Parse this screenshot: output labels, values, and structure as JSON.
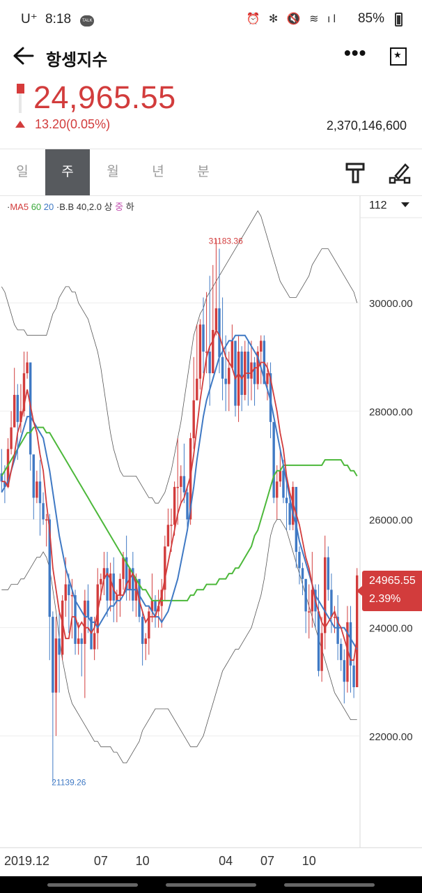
{
  "status_bar": {
    "carrier": "U⁺",
    "time": "8:18",
    "talk_badge": "TALK",
    "icons": "⏰ ✻ 🔇 ≋ ıl",
    "battery": "85%"
  },
  "header": {
    "title": "항셍지수",
    "back_icon": "arrow-left-icon",
    "more_icon": "more-dots-icon",
    "bookmark_icon": "bookmark-star-icon"
  },
  "quote": {
    "price": "24,965.55",
    "change": "13.20(0.05%)",
    "direction": "up",
    "volume": "2,370,146,600",
    "color_up": "#d23c3c"
  },
  "tabs": [
    {
      "label": "일",
      "active": false
    },
    {
      "label": "주",
      "active": true
    },
    {
      "label": "월",
      "active": false
    },
    {
      "label": "년",
      "active": false
    },
    {
      "label": "분",
      "active": false
    }
  ],
  "legend": {
    "ma5": "MA5",
    "ma60": "60",
    "ma20": "20",
    "bb": "B.B 40,2.0 상",
    "mid": "중",
    "low": "하"
  },
  "candle_count": "112",
  "price_tag": {
    "value": "24965.55",
    "percent": "2.39%"
  },
  "chart_data": {
    "type": "candlestick",
    "ylim": [
      20000,
      31600
    ],
    "y_ticks": [
      22000,
      24000,
      26000,
      28000,
      30000
    ],
    "y_tick_labels": [
      "22000.00",
      "24000.00",
      "26000.00",
      "28000.00",
      "30000.00"
    ],
    "x_tick_labels": [
      {
        "label": "2019.12",
        "index": 2
      },
      {
        "label": "07",
        "index": 31
      },
      {
        "label": "10",
        "index": 44
      },
      {
        "label": "04",
        "index": 70
      },
      {
        "label": "07",
        "index": 83
      },
      {
        "label": "10",
        "index": 96
      }
    ],
    "annotations": [
      {
        "text": "31183.36",
        "index": 64,
        "value": 31183.36,
        "kind": "high"
      },
      {
        "text": "21139.26",
        "index": 15,
        "value": 21139.26,
        "kind": "low"
      }
    ],
    "grid": true,
    "colors": {
      "up": "#d23c3c",
      "down": "#3f79c4",
      "ma5": "#d23c3c",
      "ma20": "#3f79c4",
      "ma60": "#4cb83a",
      "bband": "#555555"
    },
    "close": [
      26700,
      26600,
      27300,
      27700,
      28300,
      27800,
      28000,
      28700,
      28900,
      27200,
      26400,
      26700,
      26300,
      26000,
      26000,
      24200,
      22800,
      23800,
      23500,
      24500,
      24800,
      24600,
      24600,
      23700,
      23800,
      23700,
      24500,
      24200,
      23600,
      23900,
      24800,
      24900,
      25100,
      24500,
      25000,
      24500,
      24600,
      24900,
      25300,
      24700,
      25100,
      24500,
      24900,
      24200,
      23700,
      23800,
      24300,
      24500,
      24300,
      24400,
      24700,
      25500,
      25900,
      25900,
      26600,
      26600,
      26800,
      26500,
      26000,
      27500,
      28200,
      28600,
      29600,
      29100,
      29100,
      28700,
      29500,
      29900,
      29000,
      28600,
      28500,
      28800,
      29300,
      28100,
      29100,
      28300,
      29100,
      28600,
      28900,
      28500,
      29100,
      29300,
      28500,
      28700,
      27800,
      26400,
      26700,
      26900,
      26400,
      26300,
      25900,
      26600,
      25400,
      25100,
      24900,
      24300,
      24300,
      24700,
      24300,
      23200,
      23900,
      25300,
      24700,
      24200,
      24200,
      23700,
      23400,
      23000,
      24100,
      23300,
      22900,
      24965.55
    ],
    "high": [
      27300,
      27000,
      27500,
      28000,
      28800,
      28500,
      28500,
      29100,
      29100,
      28800,
      27200,
      26900,
      27100,
      26500,
      26100,
      26100,
      24300,
      24200,
      24300,
      24600,
      25300,
      25000,
      24900,
      24700,
      24100,
      23900,
      24700,
      24800,
      24200,
      24200,
      25100,
      25000,
      25400,
      25400,
      25200,
      25300,
      24700,
      25000,
      25400,
      25700,
      25100,
      25400,
      25000,
      24800,
      24300,
      23900,
      24400,
      25000,
      24600,
      24700,
      24900,
      25700,
      26200,
      26200,
      26700,
      27500,
      27000,
      27400,
      26600,
      27600,
      29000,
      29600,
      29700,
      30100,
      30200,
      30500,
      30700,
      31183,
      31000,
      30100,
      29400,
      29100,
      29600,
      29300,
      29400,
      29200,
      29300,
      29300,
      29300,
      29000,
      29200,
      29400,
      29400,
      28900,
      28900,
      27700,
      27000,
      27300,
      27100,
      26800,
      26400,
      26700,
      26400,
      25500,
      25200,
      24900,
      24800,
      25400,
      24800,
      24800,
      24200,
      25700,
      25500,
      25000,
      24400,
      24600,
      23800,
      23600,
      24400,
      24400,
      23400,
      25100
    ],
    "low": [
      26500,
      26300,
      26700,
      27200,
      28000,
      27100,
      27600,
      27900,
      28600,
      26900,
      26000,
      26300,
      25700,
      25900,
      25500,
      23400,
      21139,
      22000,
      22800,
      23400,
      24200,
      23900,
      23800,
      23500,
      23500,
      23100,
      22700,
      23900,
      23600,
      23400,
      23600,
      24500,
      24600,
      24200,
      24300,
      24100,
      24100,
      24200,
      24700,
      24500,
      24500,
      24300,
      24200,
      24100,
      23300,
      23400,
      23500,
      24100,
      24000,
      24000,
      24000,
      24500,
      25500,
      25400,
      25700,
      25900,
      26300,
      26300,
      25800,
      25900,
      27300,
      28300,
      28400,
      28700,
      28700,
      28100,
      28800,
      29400,
      28700,
      28200,
      28000,
      28000,
      28800,
      27900,
      27800,
      28000,
      28200,
      28100,
      28200,
      28100,
      28400,
      28500,
      28500,
      28200,
      27500,
      26300,
      26000,
      26600,
      26300,
      25800,
      25800,
      25800,
      25100,
      24800,
      24600,
      23900,
      23800,
      24000,
      24000,
      23100,
      23000,
      23600,
      24500,
      23900,
      23900,
      23400,
      23200,
      22600,
      22800,
      22800,
      22700,
      23700
    ],
    "ma5": [
      26700,
      26700,
      26600,
      26900,
      27200,
      27600,
      27800,
      28100,
      28400,
      28100,
      27800,
      27600,
      27200,
      26900,
      26300,
      25800,
      25100,
      24700,
      24300,
      24100,
      23800,
      23800,
      24200,
      24200,
      24000,
      24100,
      24000,
      24000,
      23900,
      24000,
      24300,
      24600,
      24900,
      25000,
      24900,
      24700,
      24600,
      24600,
      24600,
      24800,
      24900,
      25000,
      24800,
      24500,
      24300,
      24100,
      24200,
      24200,
      24200,
      24400,
      24600,
      24900,
      25200,
      25500,
      25800,
      26100,
      26300,
      26400,
      26600,
      26800,
      27200,
      27700,
      28200,
      28600,
      29000,
      29200,
      29300,
      29500,
      29400,
      29200,
      29000,
      28900,
      28800,
      28600,
      28700,
      28600,
      28700,
      28700,
      28700,
      28800,
      28800,
      28900,
      28900,
      28800,
      28600,
      28300,
      28000,
      27600,
      27300,
      26800,
      26500,
      26300,
      26100,
      25900,
      25600,
      25300,
      25100,
      24800,
      24500,
      24300,
      24100,
      24000,
      24100,
      24200,
      24300,
      24100,
      24000,
      23800,
      23600,
      23400,
      23400,
      23800
    ],
    "ma20": [
      26500,
      26600,
      26700,
      26900,
      27100,
      27300,
      27500,
      27700,
      27900,
      27900,
      27800,
      27700,
      27600,
      27500,
      27200,
      26900,
      26500,
      26100,
      25700,
      25400,
      25100,
      24900,
      24700,
      24500,
      24400,
      24300,
      24200,
      24200,
      24100,
      24100,
      24000,
      24100,
      24200,
      24300,
      24400,
      24400,
      24500,
      24500,
      24600,
      24700,
      24700,
      24700,
      24700,
      24600,
      24500,
      24400,
      24400,
      24300,
      24200,
      24200,
      24100,
      24200,
      24300,
      24500,
      24700,
      24900,
      25200,
      25500,
      25800,
      26200,
      26600,
      27100,
      27500,
      27900,
      28200,
      28400,
      28600,
      28800,
      29000,
      29100,
      29200,
      29300,
      29300,
      29400,
      29400,
      29400,
      29400,
      29300,
      29200,
      29100,
      29000,
      28800,
      28600,
      28400,
      28200,
      27900,
      27600,
      27300,
      27000,
      26700,
      26400,
      26100,
      25900,
      25600,
      25400,
      25200,
      25000,
      24800,
      24600,
      24500,
      24400,
      24300,
      24200,
      24100,
      24000,
      24000,
      24000,
      24000,
      23900,
      23800,
      23700,
      23600
    ],
    "ma60": [
      26800,
      26900,
      27000,
      27100,
      27200,
      27300,
      27400,
      27500,
      27600,
      27600,
      27700,
      27700,
      27700,
      27700,
      27600,
      27600,
      27500,
      27400,
      27300,
      27200,
      27100,
      27000,
      26900,
      26800,
      26700,
      26600,
      26500,
      26400,
      26300,
      26200,
      26100,
      26000,
      25900,
      25800,
      25700,
      25600,
      25500,
      25400,
      25300,
      25200,
      25100,
      25000,
      24900,
      24800,
      24700,
      24700,
      24600,
      24500,
      24500,
      24500,
      24500,
      24500,
      24500,
      24500,
      24500,
      24500,
      24500,
      24500,
      24500,
      24600,
      24600,
      24700,
      24700,
      24700,
      24800,
      24800,
      24800,
      24800,
      24900,
      24900,
      24900,
      25000,
      25000,
      25100,
      25100,
      25200,
      25300,
      25400,
      25500,
      25700,
      25800,
      26000,
      26200,
      26400,
      26600,
      26800,
      26900,
      26900,
      27000,
      27000,
      27000,
      27000,
      27000,
      27000,
      27000,
      27000,
      27000,
      27000,
      27000,
      27000,
      27000,
      27100,
      27100,
      27100,
      27100,
      27100,
      27100,
      27000,
      27000,
      26900,
      26900,
      26800
    ],
    "bb_upper": [
      30300,
      30200,
      30000,
      29800,
      29600,
      29500,
      29500,
      29500,
      29400,
      29400,
      29400,
      29400,
      29400,
      29400,
      29400,
      29600,
      29800,
      29900,
      30100,
      30200,
      30300,
      30300,
      30200,
      30200,
      30000,
      29900,
      29800,
      29700,
      29500,
      29300,
      29100,
      28800,
      28400,
      28000,
      27600,
      27300,
      27100,
      26900,
      26800,
      26800,
      26800,
      26800,
      26800,
      26700,
      26600,
      26500,
      26400,
      26400,
      26300,
      26300,
      26400,
      26500,
      26700,
      26900,
      27200,
      27500,
      27800,
      28200,
      28600,
      29000,
      29400,
      29600,
      29800,
      29900,
      30100,
      30200,
      30300,
      30400,
      30500,
      30600,
      30700,
      30800,
      30900,
      31000,
      31100,
      31200,
      31300,
      31400,
      31500,
      31600,
      31700,
      31600,
      31400,
      31200,
      31000,
      30800,
      30600,
      30400,
      30300,
      30200,
      30100,
      30100,
      30100,
      30200,
      30300,
      30400,
      30500,
      30700,
      30800,
      30900,
      31000,
      31000,
      31000,
      30900,
      30800,
      30700,
      30600,
      30500,
      30400,
      30300,
      30200,
      30000
    ],
    "bb_lower": [
      24700,
      24700,
      24700,
      24800,
      24800,
      24800,
      24900,
      24900,
      25000,
      25100,
      25200,
      25300,
      25300,
      25400,
      25300,
      25100,
      24700,
      24300,
      23800,
      23400,
      23100,
      22800,
      22600,
      22500,
      22400,
      22300,
      22200,
      22100,
      22000,
      21900,
      21900,
      21800,
      21800,
      21800,
      21800,
      21700,
      21700,
      21600,
      21500,
      21500,
      21600,
      21700,
      21800,
      21900,
      22100,
      22200,
      22300,
      22400,
      22500,
      22500,
      22500,
      22500,
      22500,
      22400,
      22300,
      22200,
      22100,
      22000,
      21900,
      21800,
      21800,
      21800,
      21900,
      22000,
      22200,
      22400,
      22600,
      22800,
      23000,
      23200,
      23300,
      23400,
      23500,
      23600,
      23600,
      23700,
      23800,
      23900,
      24000,
      24200,
      24400,
      24600,
      24900,
      25300,
      25700,
      25900,
      26000,
      26000,
      25900,
      25800,
      25600,
      25400,
      25200,
      25000,
      24800,
      24600,
      24400,
      24200,
      24000,
      23800,
      23600,
      23400,
      23200,
      23000,
      22800,
      22700,
      22600,
      22500,
      22400,
      22300,
      22300,
      22300
    ]
  }
}
